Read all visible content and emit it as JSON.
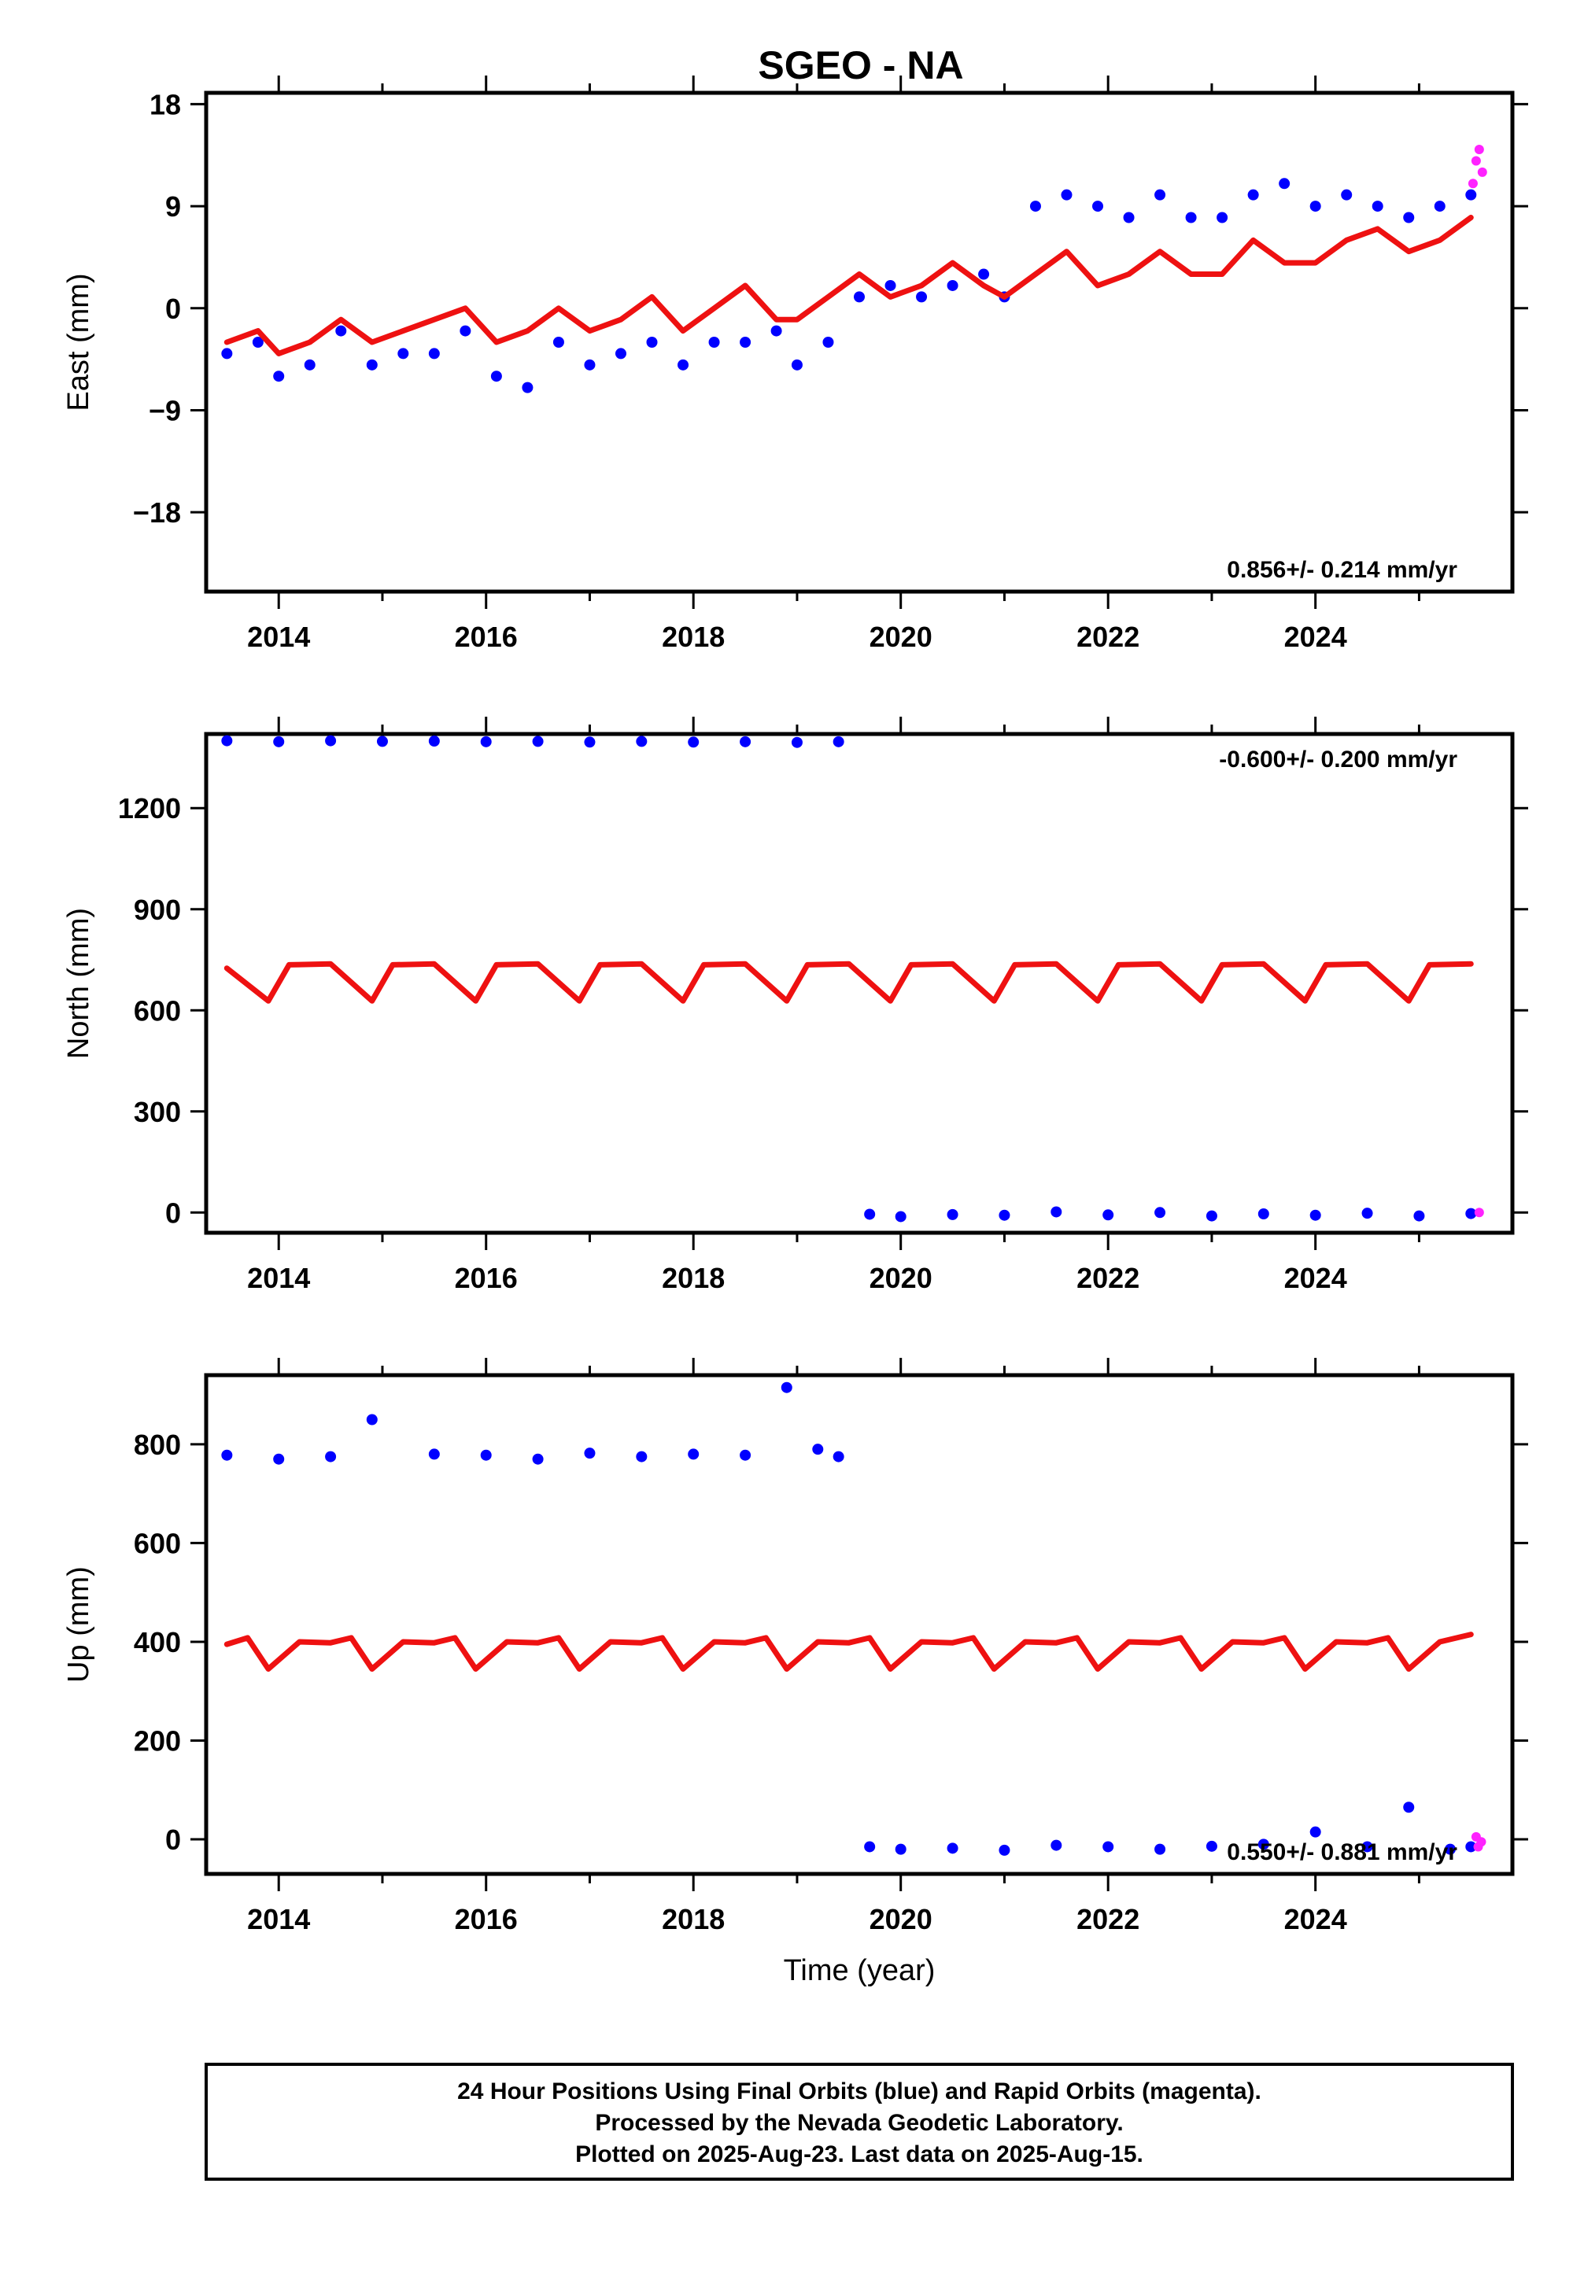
{
  "title": "SGEO - NA",
  "colors": {
    "final_orbits": "#0000ff",
    "rapid_orbits": "#ff22ff",
    "model": "#ee1111",
    "frame": "#000000"
  },
  "chart_data": [
    {
      "type": "scatter",
      "panel": "east",
      "ylabel": "East (mm)",
      "xlabel": "",
      "xlim": [
        2013.3,
        2025.9
      ],
      "ylim": [
        -25,
        19
      ],
      "yticks": [
        -18,
        -9,
        0,
        9,
        18
      ],
      "ytick_labels": [
        "−18",
        "−9",
        "0",
        "9",
        "18"
      ],
      "xticks": [
        2014,
        2016,
        2018,
        2020,
        2022,
        2024
      ],
      "xtick_labels": [
        "2014",
        "2016",
        "2018",
        "2020",
        "2022",
        "2024"
      ],
      "rate_text": "0.856+/- 0.214 mm/yr",
      "rate_position": "bottom-right",
      "series": [
        {
          "role": "final_orbits",
          "x": [
            2013.5,
            2013.8,
            2014.0,
            2014.3,
            2014.6,
            2014.9,
            2015.2,
            2015.5,
            2015.8,
            2016.1,
            2016.4,
            2016.7,
            2017.0,
            2017.3,
            2017.6,
            2017.9,
            2018.2,
            2018.5,
            2018.8,
            2019.0,
            2019.3,
            2019.6,
            2019.9,
            2020.2,
            2020.5,
            2020.8,
            2021.0,
            2021.3,
            2021.6,
            2021.9,
            2022.2,
            2022.5,
            2022.8,
            2023.1,
            2023.4,
            2023.7,
            2024.0,
            2024.3,
            2024.6,
            2024.9,
            2025.2,
            2025.5
          ],
          "y": [
            -4,
            -3,
            -6,
            -5,
            -2,
            -5,
            -4,
            -4,
            -2,
            -6,
            -7,
            -3,
            -5,
            -4,
            -3,
            -5,
            -3,
            -3,
            -2,
            -5,
            -3,
            1,
            2,
            1,
            2,
            3,
            1,
            9,
            10,
            9,
            8,
            10,
            8,
            8,
            10,
            11,
            9,
            10,
            9,
            8,
            9,
            10
          ]
        },
        {
          "role": "model",
          "x": [
            2013.5,
            2013.8,
            2014.0,
            2014.3,
            2014.6,
            2014.9,
            2015.2,
            2015.5,
            2015.8,
            2016.1,
            2016.4,
            2016.7,
            2017.0,
            2017.3,
            2017.6,
            2017.9,
            2018.2,
            2018.5,
            2018.8,
            2019.0,
            2019.3,
            2019.6,
            2019.9,
            2020.2,
            2020.5,
            2020.8,
            2021.0,
            2021.3,
            2021.6,
            2021.9,
            2022.2,
            2022.5,
            2022.8,
            2023.1,
            2023.4,
            2023.7,
            2024.0,
            2024.3,
            2024.6,
            2024.9,
            2025.2,
            2025.5
          ],
          "y": [
            -3,
            -2,
            -4,
            -3,
            -1,
            -3,
            -2,
            -1,
            0,
            -3,
            -2,
            0,
            -2,
            -1,
            1,
            -2,
            0,
            2,
            -1,
            -1,
            1,
            3,
            1,
            2,
            4,
            2,
            1,
            3,
            5,
            2,
            3,
            5,
            3,
            3,
            6,
            4,
            4,
            6,
            7,
            5,
            6,
            8
          ]
        },
        {
          "role": "rapid_orbits",
          "x": [
            2025.52,
            2025.55,
            2025.58,
            2025.61
          ],
          "y": [
            11,
            13,
            14,
            12
          ]
        }
      ]
    },
    {
      "type": "scatter",
      "panel": "north",
      "ylabel": "North (mm)",
      "xlabel": "",
      "xlim": [
        2013.3,
        2025.9
      ],
      "ylim": [
        -60,
        1420
      ],
      "yticks": [
        0,
        300,
        600,
        900,
        1200
      ],
      "ytick_labels": [
        "0",
        "300",
        "600",
        "900",
        "1200"
      ],
      "xticks": [
        2014,
        2016,
        2018,
        2020,
        2022,
        2024
      ],
      "xtick_labels": [
        "2014",
        "2016",
        "2018",
        "2020",
        "2022",
        "2024"
      ],
      "rate_text": "-0.600+/- 0.200 mm/yr",
      "rate_position": "top-right",
      "series": [
        {
          "role": "final_orbits",
          "x": [
            2013.5,
            2014.0,
            2014.5,
            2015.0,
            2015.5,
            2016.0,
            2016.5,
            2017.0,
            2017.5,
            2018.0,
            2018.5,
            2019.0,
            2019.4,
            2019.7,
            2020.0,
            2020.5,
            2021.0,
            2021.5,
            2022.0,
            2022.5,
            2023.0,
            2023.5,
            2024.0,
            2024.5,
            2025.0,
            2025.5
          ],
          "y": [
            1400,
            1397,
            1400,
            1398,
            1399,
            1397,
            1398,
            1396,
            1398,
            1396,
            1397,
            1395,
            1397,
            -5,
            -12,
            -6,
            -8,
            2,
            -7,
            0,
            -10,
            -4,
            -8,
            -2,
            -10,
            -3
          ]
        },
        {
          "role": "model",
          "x": [
            2013.5,
            2013.9,
            2014.1,
            2014.5,
            2014.9,
            2015.1,
            2015.5,
            2015.9,
            2016.1,
            2016.5,
            2016.9,
            2017.1,
            2017.5,
            2017.9,
            2018.1,
            2018.5,
            2018.9,
            2019.1,
            2019.5,
            2019.9,
            2020.1,
            2020.5,
            2020.9,
            2021.1,
            2021.5,
            2021.9,
            2022.1,
            2022.5,
            2022.9,
            2023.1,
            2023.5,
            2023.9,
            2024.1,
            2024.5,
            2024.9,
            2025.1,
            2025.5
          ],
          "y": [
            725,
            628,
            735,
            738,
            628,
            735,
            738,
            628,
            735,
            738,
            628,
            735,
            738,
            628,
            735,
            738,
            628,
            735,
            738,
            628,
            735,
            738,
            628,
            735,
            738,
            628,
            735,
            738,
            628,
            735,
            738,
            628,
            735,
            738,
            628,
            735,
            738
          ]
        },
        {
          "role": "rapid_orbits",
          "x": [
            2025.58
          ],
          "y": [
            0
          ]
        }
      ]
    },
    {
      "type": "scatter",
      "panel": "up",
      "ylabel": "Up (mm)",
      "xlabel": "Time (year)",
      "xlim": [
        2013.3,
        2025.9
      ],
      "ylim": [
        -70,
        940
      ],
      "yticks": [
        0,
        200,
        400,
        600,
        800
      ],
      "ytick_labels": [
        "0",
        "200",
        "400",
        "600",
        "800"
      ],
      "xticks": [
        2014,
        2016,
        2018,
        2020,
        2022,
        2024
      ],
      "xtick_labels": [
        "2014",
        "2016",
        "2018",
        "2020",
        "2022",
        "2024"
      ],
      "rate_text": "0.550+/- 0.881 mm/yr",
      "rate_position": "bottom-right",
      "series": [
        {
          "role": "final_orbits",
          "x": [
            2013.5,
            2014.0,
            2014.5,
            2014.9,
            2015.5,
            2016.0,
            2016.5,
            2017.0,
            2017.5,
            2018.0,
            2018.5,
            2018.9,
            2019.2,
            2019.4,
            2019.7,
            2020.0,
            2020.5,
            2021.0,
            2021.5,
            2022.0,
            2022.5,
            2023.0,
            2023.5,
            2024.0,
            2024.5,
            2024.9,
            2025.3,
            2025.5
          ],
          "y": [
            778,
            770,
            775,
            850,
            780,
            778,
            770,
            782,
            775,
            780,
            778,
            915,
            790,
            775,
            -15,
            -20,
            -18,
            -22,
            -12,
            -15,
            -20,
            -14,
            -10,
            15,
            -15,
            65,
            -20,
            -15
          ]
        },
        {
          "role": "model",
          "x": [
            2013.5,
            2013.7,
            2013.9,
            2014.2,
            2014.5,
            2014.7,
            2014.9,
            2015.2,
            2015.5,
            2015.7,
            2015.9,
            2016.2,
            2016.5,
            2016.7,
            2016.9,
            2017.2,
            2017.5,
            2017.7,
            2017.9,
            2018.2,
            2018.5,
            2018.7,
            2018.9,
            2019.2,
            2019.5,
            2019.7,
            2019.9,
            2020.2,
            2020.5,
            2020.7,
            2020.9,
            2021.2,
            2021.5,
            2021.7,
            2021.9,
            2022.2,
            2022.5,
            2022.7,
            2022.9,
            2023.2,
            2023.5,
            2023.7,
            2023.9,
            2024.2,
            2024.5,
            2024.7,
            2024.9,
            2025.2,
            2025.5
          ],
          "y": [
            395,
            408,
            345,
            400,
            398,
            408,
            345,
            400,
            398,
            408,
            345,
            400,
            398,
            408,
            345,
            400,
            398,
            408,
            345,
            400,
            398,
            408,
            345,
            400,
            398,
            408,
            345,
            400,
            398,
            408,
            345,
            400,
            398,
            408,
            345,
            400,
            398,
            408,
            345,
            400,
            398,
            408,
            345,
            400,
            398,
            408,
            345,
            400,
            415
          ]
        },
        {
          "role": "rapid_orbits",
          "x": [
            2025.55,
            2025.57,
            2025.6
          ],
          "y": [
            5,
            -15,
            -5
          ]
        }
      ]
    }
  ],
  "footer": {
    "line1": "24 Hour Positions Using Final Orbits (blue) and Rapid Orbits (magenta).",
    "line2": "Processed by the Nevada Geodetic Laboratory.",
    "line3": "Plotted on 2025-Aug-23. Last data on 2025-Aug-15."
  }
}
